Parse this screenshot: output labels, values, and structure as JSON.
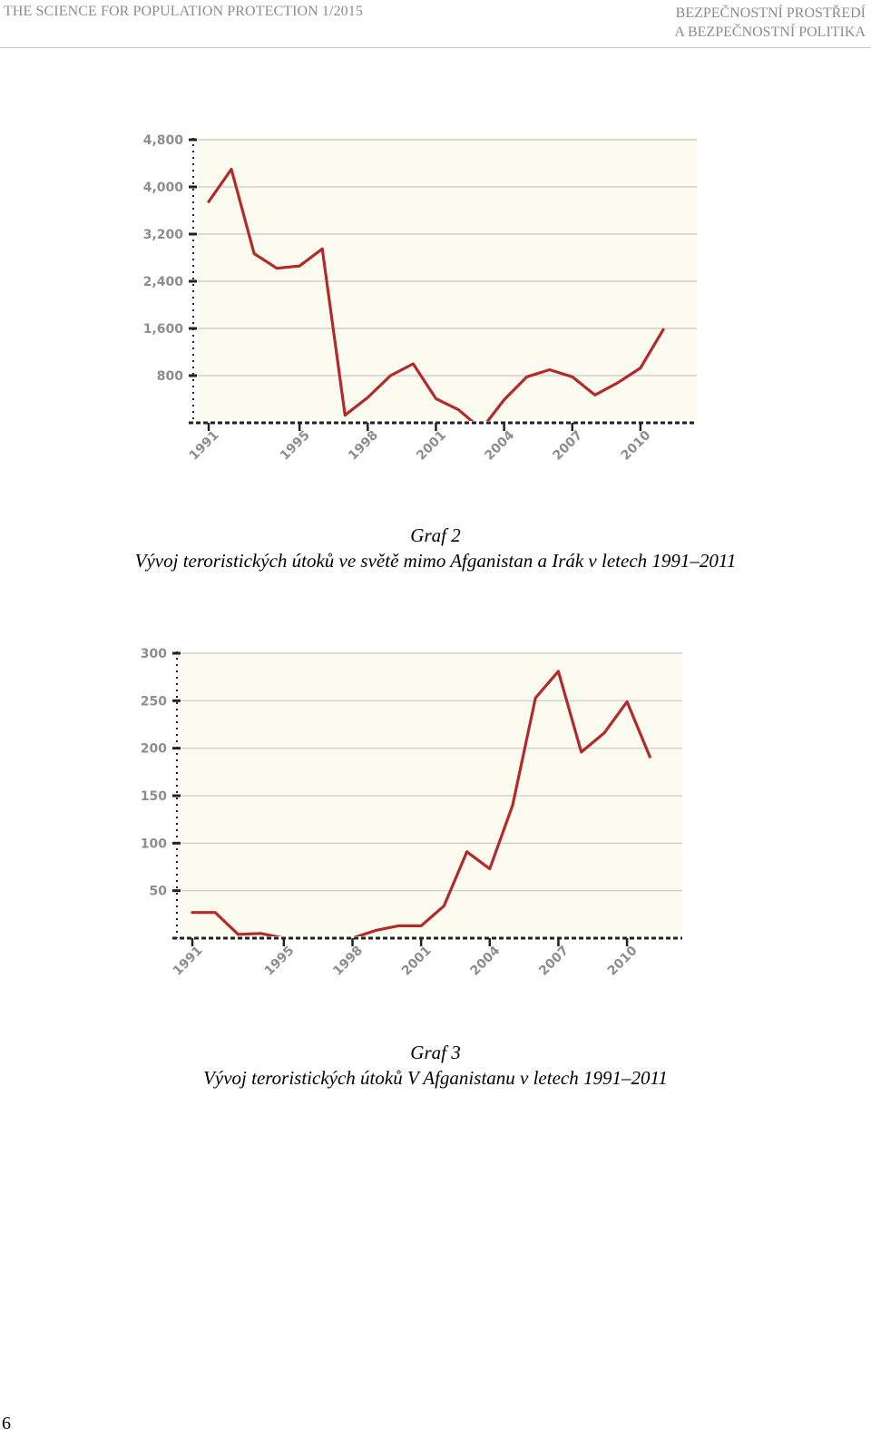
{
  "header": {
    "journal": "THE SCIENCE FOR POPULATION PROTECTION 1/2015",
    "section_line1": "BEZPEČNOSTNÍ PROSTŘEDÍ",
    "section_line2": "A BEZPEČNOSTNÍ POLITIKA"
  },
  "captions": [
    {
      "label": "Graf 2",
      "text": "Vývoj teroristických útoků ve světě mimo Afganistan a Irák v letech 1991–2011"
    },
    {
      "label": "Graf 3",
      "text": "Vývoj teroristických útoků V Afganistanu v letech 1991–2011"
    }
  ],
  "page_number": "6",
  "chart_data": [
    {
      "type": "line",
      "x": [
        1991,
        1992,
        1993,
        1994,
        1995,
        1996,
        1997,
        1998,
        1999,
        2000,
        2001,
        2002,
        2003,
        2004,
        2005,
        2006,
        2007,
        2008,
        2009,
        2010,
        2011
      ],
      "series": [
        {
          "values": [
            3750,
            4300,
            2870,
            2620,
            2660,
            2950,
            130,
            430,
            800,
            1000,
            410,
            220,
            -110,
            390,
            780,
            900,
            780,
            470,
            680,
            930,
            1580
          ]
        }
      ],
      "y_ticks": [
        800,
        1600,
        2400,
        3200,
        4000,
        4800
      ],
      "y_tick_labels": [
        "800",
        "1,600",
        "2,400",
        "3,200",
        "4,000",
        "4,800"
      ],
      "x_ticks": [
        1991,
        1995,
        1998,
        2001,
        2004,
        2007,
        2010
      ],
      "x_tick_labels": [
        "1991",
        "1995",
        "1998",
        "2001",
        "2004",
        "2007",
        "2010"
      ],
      "xlim": [
        1991,
        2012
      ],
      "ylim": [
        0,
        4800
      ],
      "grid": true,
      "line_color": "#b22a2a",
      "plot_background": "#fcfbf0",
      "grid_color": "#c8c8c8"
    },
    {
      "type": "line",
      "x": [
        1991,
        1992,
        1993,
        1994,
        1995,
        1996,
        1997,
        1998,
        1999,
        2000,
        2001,
        2002,
        2003,
        2004,
        2005,
        2006,
        2007,
        2008,
        2009,
        2010,
        2011
      ],
      "series": [
        {
          "values": [
            27,
            27,
            4,
            5,
            0,
            0,
            0,
            0,
            8,
            13,
            13,
            34,
            91,
            73,
            140,
            253,
            281,
            196,
            216,
            249,
            191
          ]
        }
      ],
      "y_ticks": [
        50,
        100,
        150,
        200,
        250,
        300
      ],
      "y_tick_labels": [
        "50",
        "100",
        "150",
        "200",
        "250",
        "300"
      ],
      "x_ticks": [
        1991,
        1995,
        1998,
        2001,
        2004,
        2007,
        2010
      ],
      "x_tick_labels": [
        "1991",
        "1995",
        "1998",
        "2001",
        "2004",
        "2007",
        "2010"
      ],
      "xlim": [
        1991,
        2011.9
      ],
      "ylim": [
        0,
        300
      ],
      "grid": true,
      "line_color": "#b22a2a",
      "plot_background": "#fcfbf0",
      "grid_color": "#c8c8c8"
    }
  ]
}
